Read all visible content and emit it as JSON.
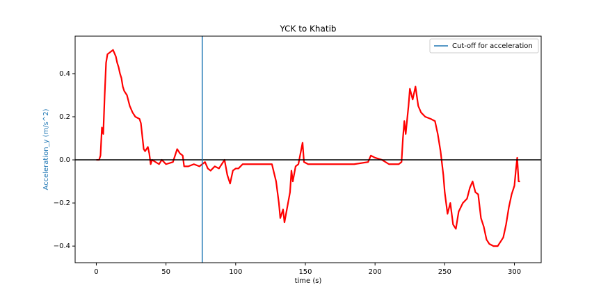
{
  "chart_data": {
    "type": "line",
    "title": "YCK to Khatib",
    "x_label": "time (s)",
    "y_label": "Acceleration_y (m/s^2)",
    "x": [
      0,
      2,
      3,
      4,
      5,
      6,
      7,
      8,
      10,
      12,
      14,
      15,
      16,
      17,
      18,
      19,
      20,
      22,
      24,
      26,
      28,
      31,
      32,
      33,
      34,
      35,
      37,
      38,
      39,
      40,
      45,
      47,
      50,
      55,
      57,
      58,
      60,
      62,
      63,
      66,
      70,
      74,
      76,
      78,
      80,
      82,
      85,
      88,
      90,
      92,
      94,
      96,
      98,
      100,
      102,
      105,
      110,
      115,
      120,
      126,
      129,
      131,
      132,
      134,
      135,
      137,
      139,
      140,
      141,
      143,
      145,
      148,
      149,
      152,
      160,
      170,
      178,
      185,
      195,
      197,
      200,
      205,
      210,
      217,
      219,
      220,
      221,
      222,
      224,
      225,
      227,
      229,
      231,
      233,
      236,
      240,
      243,
      245,
      247,
      249,
      250,
      252,
      254,
      256,
      258,
      260,
      263,
      266,
      268,
      270,
      272,
      274,
      276,
      278,
      280,
      282,
      285,
      288,
      290,
      292,
      294,
      296,
      298,
      300,
      301,
      302,
      303,
      304
    ],
    "series": [
      {
        "name": null,
        "color": "#ff0000",
        "values": [
          0,
          0,
          0.02,
          0.15,
          0.12,
          0.3,
          0.45,
          0.49,
          0.5,
          0.51,
          0.48,
          0.45,
          0.43,
          0.4,
          0.38,
          0.34,
          0.32,
          0.3,
          0.25,
          0.22,
          0.2,
          0.19,
          0.17,
          0.11,
          0.05,
          0.04,
          0.06,
          0.03,
          -0.02,
          0,
          -0.02,
          0,
          -0.02,
          -0.01,
          0.03,
          0.05,
          0.03,
          0.02,
          -0.03,
          -0.03,
          -0.02,
          -0.03,
          -0.02,
          -0.01,
          -0.04,
          -0.05,
          -0.03,
          -0.04,
          -0.02,
          0.0,
          -0.07,
          -0.11,
          -0.05,
          -0.04,
          -0.04,
          -0.02,
          -0.02,
          -0.02,
          -0.02,
          -0.02,
          -0.1,
          -0.2,
          -0.27,
          -0.23,
          -0.29,
          -0.22,
          -0.15,
          -0.05,
          -0.1,
          -0.03,
          -0.02,
          0.08,
          -0.01,
          -0.02,
          -0.02,
          -0.02,
          -0.02,
          -0.02,
          -0.01,
          0.02,
          0.01,
          0.0,
          -0.02,
          -0.02,
          -0.01,
          0.1,
          0.18,
          0.12,
          0.25,
          0.33,
          0.28,
          0.34,
          0.25,
          0.22,
          0.2,
          0.19,
          0.18,
          0.12,
          0.04,
          -0.07,
          -0.15,
          -0.25,
          -0.2,
          -0.3,
          -0.32,
          -0.24,
          -0.2,
          -0.18,
          -0.13,
          -0.1,
          -0.15,
          -0.16,
          -0.27,
          -0.31,
          -0.37,
          -0.39,
          -0.4,
          -0.4,
          -0.38,
          -0.36,
          -0.3,
          -0.22,
          -0.16,
          -0.12,
          -0.05,
          0.01,
          -0.1,
          -0.1
        ]
      }
    ],
    "cutoff": {
      "name": "Cut-off for acceleration",
      "color": "#1f77b4",
      "x": 76
    },
    "hline": {
      "y": 0,
      "color": "#000000"
    },
    "xlim": [
      -15.2,
      319.2
    ],
    "ylim": [
      -0.477,
      0.574
    ],
    "xticks": [
      0,
      50,
      100,
      150,
      200,
      250,
      300
    ],
    "yticks": [
      {
        "value": -0.4,
        "label": "−0.4"
      },
      {
        "value": -0.2,
        "label": "−0.2"
      },
      {
        "value": 0,
        "label": "0.0"
      },
      {
        "value": 0.2,
        "label": "0.2"
      },
      {
        "value": 0.4,
        "label": "0.4"
      }
    ],
    "legend": "upper right",
    "grid": false
  }
}
